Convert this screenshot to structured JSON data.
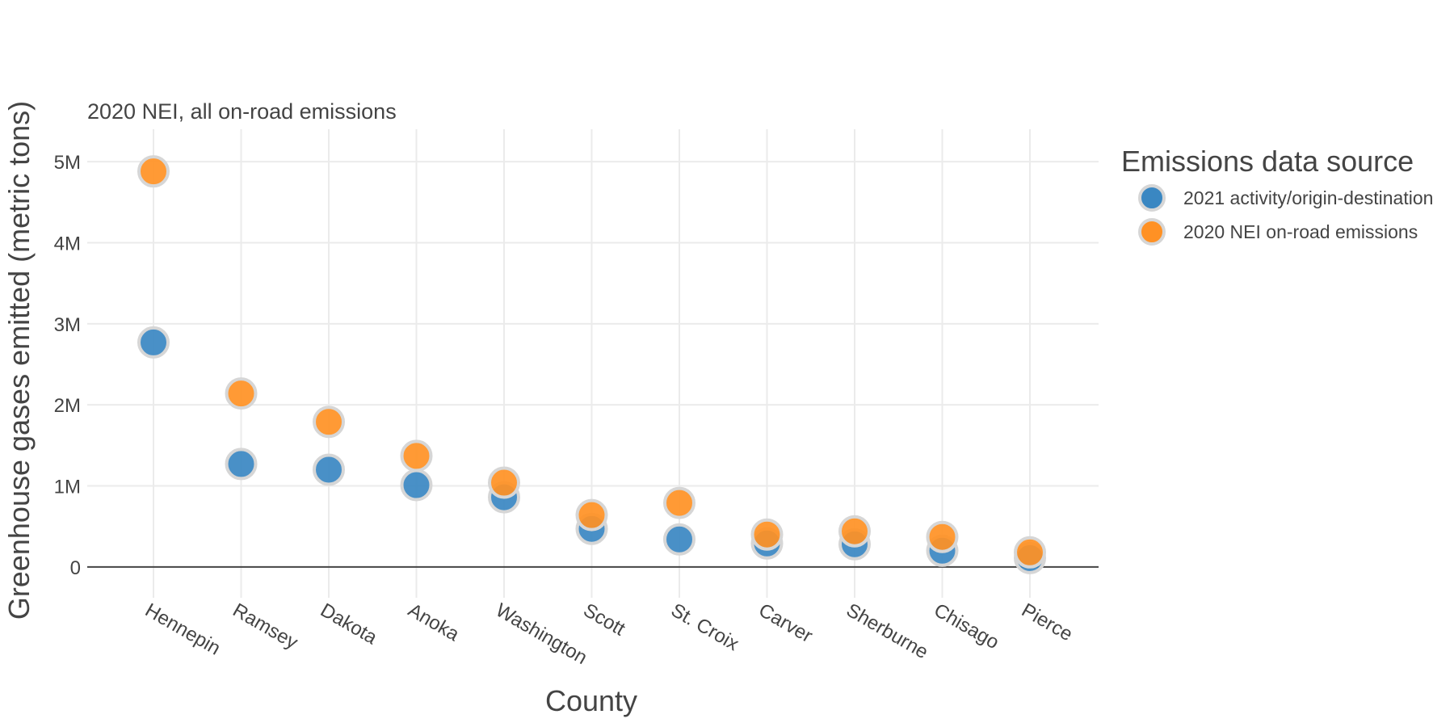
{
  "chart_data": {
    "type": "scatter",
    "title": "",
    "subtitle": "2020 NEI, all on-road emissions",
    "xlabel": "County",
    "ylabel": "Greenhouse gases emitted (metric tons)",
    "categories": [
      "Hennepin",
      "Ramsey",
      "Dakota",
      "Anoka",
      "Washington",
      "Scott",
      "St. Croix",
      "Carver",
      "Sherburne",
      "Chisago",
      "Pierce"
    ],
    "ylim": [
      -380000,
      5400000
    ],
    "yticks": [
      0,
      1000000,
      2000000,
      3000000,
      4000000,
      5000000
    ],
    "ytick_labels": [
      "0",
      "1M",
      "2M",
      "3M",
      "4M",
      "5M"
    ],
    "grid": true,
    "legend_title": "Emissions data source",
    "legend_position": "top-right",
    "series": [
      {
        "name": "2021 activity/origin-destination",
        "color": "#3a87c2",
        "values": [
          2770000,
          1270000,
          1200000,
          1010000,
          860000,
          470000,
          340000,
          290000,
          280000,
          200000,
          110000
        ]
      },
      {
        "name": "2020 NEI on-road emissions",
        "color": "#ff9124",
        "values": [
          4880000,
          2140000,
          1790000,
          1370000,
          1040000,
          640000,
          790000,
          400000,
          440000,
          370000,
          180000
        ]
      }
    ]
  }
}
